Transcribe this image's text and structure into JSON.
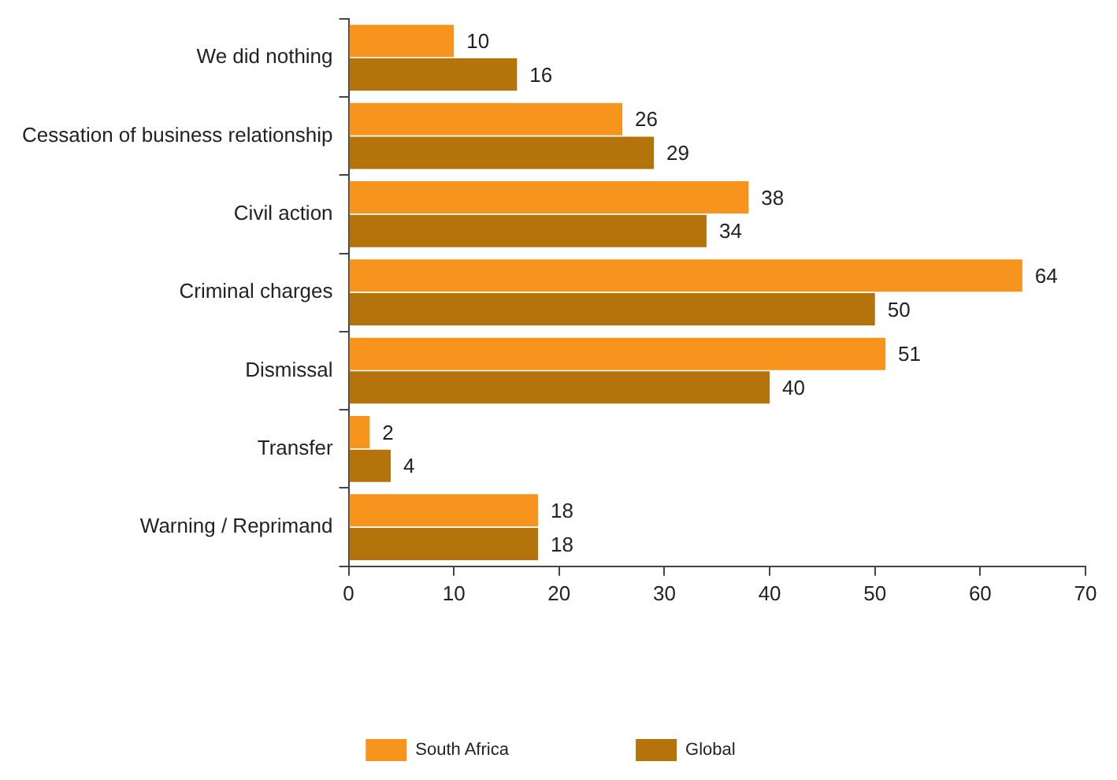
{
  "chart_data": {
    "type": "bar",
    "orientation": "horizontal",
    "categories": [
      "We did nothing",
      "Cessation of business relationship",
      "Civil action",
      "Criminal charges",
      "Dismissal",
      "Transfer",
      "Warning / Reprimand"
    ],
    "series": [
      {
        "name": "South Africa",
        "color": "#f7941d",
        "values": [
          10,
          26,
          38,
          64,
          51,
          2,
          18
        ]
      },
      {
        "name": "Global",
        "color": "#b5730b",
        "values": [
          16,
          29,
          34,
          50,
          40,
          4,
          18
        ]
      }
    ],
    "xlim": [
      0,
      70
    ],
    "xticks": [
      0,
      10,
      20,
      30,
      40,
      50,
      60,
      70
    ],
    "data_labels": true,
    "grid": false,
    "legend": "bottom"
  }
}
